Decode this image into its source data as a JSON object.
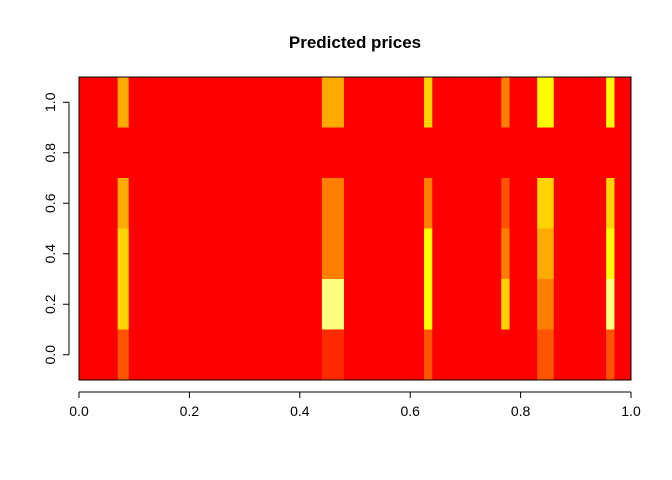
{
  "chart_data": {
    "type": "heatmap",
    "title": "Predicted prices",
    "xlabel": "",
    "ylabel": "",
    "xlim": [
      0.0,
      1.0
    ],
    "ylim": [
      -0.1,
      1.1
    ],
    "x_ticks": [
      "0.0",
      "0.2",
      "0.4",
      "0.6",
      "0.8",
      "1.0"
    ],
    "y_ticks": [
      "0.0",
      "0.2",
      "0.4",
      "0.6",
      "0.8",
      "1.0"
    ],
    "color_scale": [
      "#ff0000",
      "#ff2a00",
      "#ff5500",
      "#ff8000",
      "#ffaa00",
      "#ffd400",
      "#ffff00",
      "#ffff80"
    ],
    "colormap": "heat.colors",
    "rows": [
      {
        "y_range": [
          -0.1,
          0.1
        ],
        "levels": "0000000000000000000000000000000000000000000000000000000000000000000000000000000000000000000"
      },
      {
        "y_range": [
          0.1,
          0.3
        ],
        "levels": "0000000000000000000000000000000000000000000000000000000000000000000000000000000000000000000"
      },
      {
        "y_range": [
          0.3,
          0.5
        ],
        "levels": "0000000000000000000000000000000000000000000000000000000000000000000000000000000000000000000"
      },
      {
        "y_range": [
          0.5,
          0.7
        ],
        "levels": "0000000000000000000000000000000000000000000000000000000000000000000000000000000000000000000"
      },
      {
        "y_range": [
          0.7,
          0.9
        ],
        "levels": "0000000000000000000000000000000000000000000000000000000000000000000000000000000000000000000"
      },
      {
        "y_range": [
          0.9,
          1.1
        ],
        "levels": "0000000000000000000000000000000000000000000000000000000000000000000000000000000000000000000"
      }
    ],
    "highlights": [
      {
        "x": [
          0.07,
          0.09
        ],
        "levels": [
          2,
          5,
          5,
          4,
          0,
          4
        ]
      },
      {
        "x": [
          0.44,
          0.48
        ],
        "levels": [
          1,
          7,
          3,
          3,
          0,
          4
        ]
      },
      {
        "x": [
          0.625,
          0.64
        ],
        "levels": [
          2,
          6,
          6,
          3,
          0,
          5
        ]
      },
      {
        "x": [
          0.765,
          0.78
        ],
        "levels": [
          0,
          5,
          3,
          2,
          0,
          3
        ]
      },
      {
        "x": [
          0.83,
          0.86
        ],
        "levels": [
          2,
          3,
          4,
          5,
          0,
          6
        ]
      },
      {
        "x": [
          0.955,
          0.97
        ],
        "levels": [
          2,
          7,
          6,
          5,
          0,
          6
        ]
      }
    ]
  }
}
